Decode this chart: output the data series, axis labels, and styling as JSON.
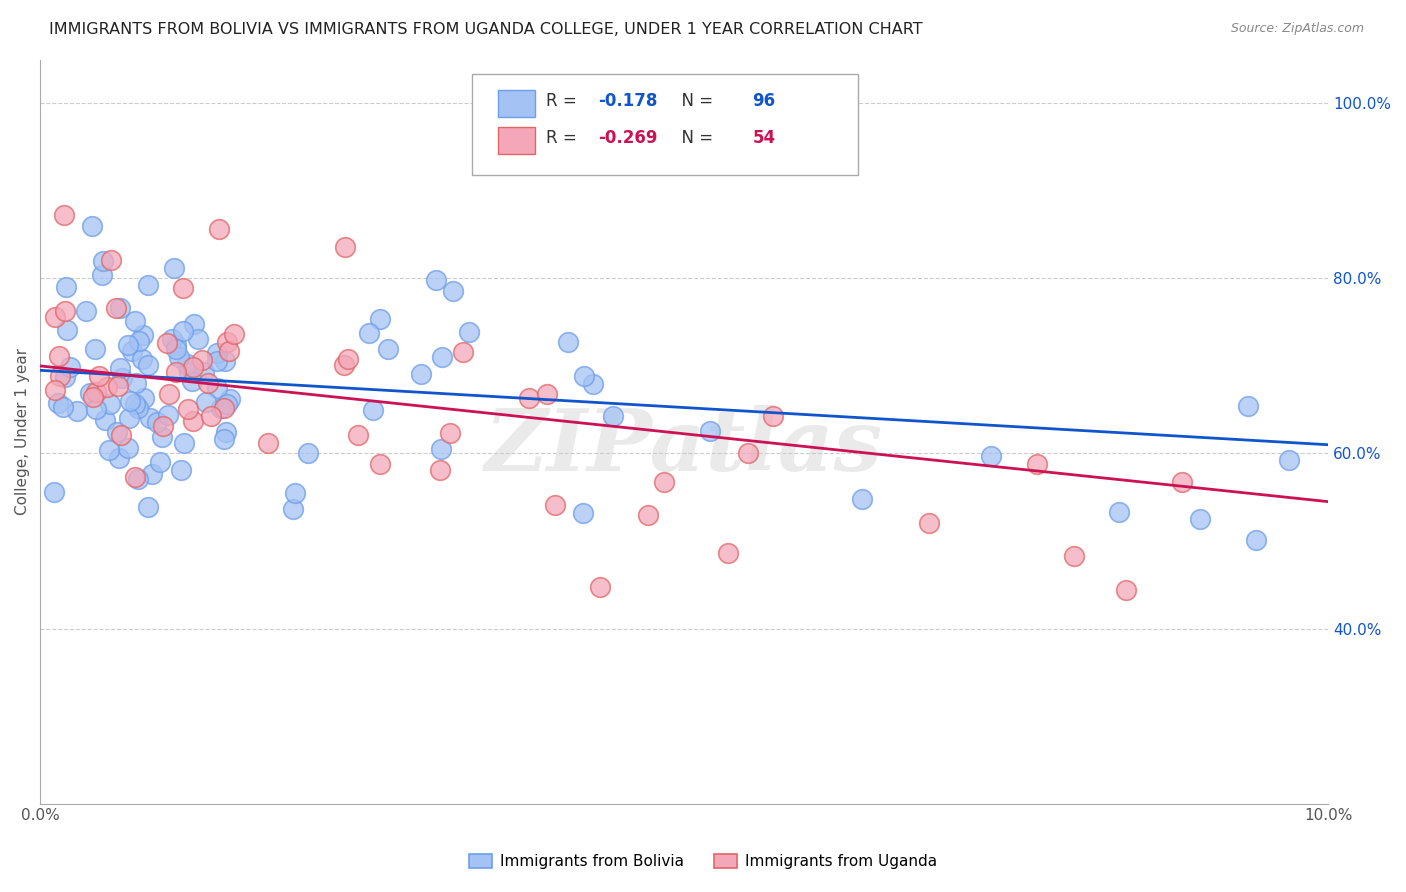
{
  "title": "IMMIGRANTS FROM BOLIVIA VS IMMIGRANTS FROM UGANDA COLLEGE, UNDER 1 YEAR CORRELATION CHART",
  "source": "Source: ZipAtlas.com",
  "ylabel": "College, Under 1 year",
  "xlim": [
    0.0,
    0.1
  ],
  "ylim": [
    0.2,
    1.05
  ],
  "ytick_vals": [
    0.4,
    0.6,
    0.8,
    1.0
  ],
  "ytick_labels": [
    "40.0%",
    "60.0%",
    "80.0%",
    "100.0%"
  ],
  "xtick_vals": [
    0.0,
    0.01,
    0.02,
    0.03,
    0.04,
    0.05,
    0.06,
    0.07,
    0.08,
    0.09,
    0.1
  ],
  "xtick_labels": [
    "0.0%",
    "",
    "",
    "",
    "",
    "",
    "",
    "",
    "",
    "",
    "10.0%"
  ],
  "bolivia_color": "#a4c2f4",
  "uganda_color": "#f4a7b9",
  "bolivia_edge": "#6d9eeb",
  "uganda_edge": "#e06666",
  "bolivia_line_color": "#1155cc",
  "uganda_line_color": "#cc1155",
  "bolivia_R": -0.178,
  "bolivia_N": 96,
  "uganda_R": -0.269,
  "uganda_N": 54,
  "background_color": "#ffffff",
  "grid_color": "#cccccc",
  "watermark": "ZIPatlas",
  "title_fontsize": 11.5,
  "axis_label_fontsize": 11,
  "tick_fontsize": 11,
  "legend_R_color_bolivia": "#1155cc",
  "legend_N_color_bolivia": "#1155cc",
  "legend_R_color_uganda": "#cc1155",
  "legend_N_color_uganda": "#cc1155"
}
